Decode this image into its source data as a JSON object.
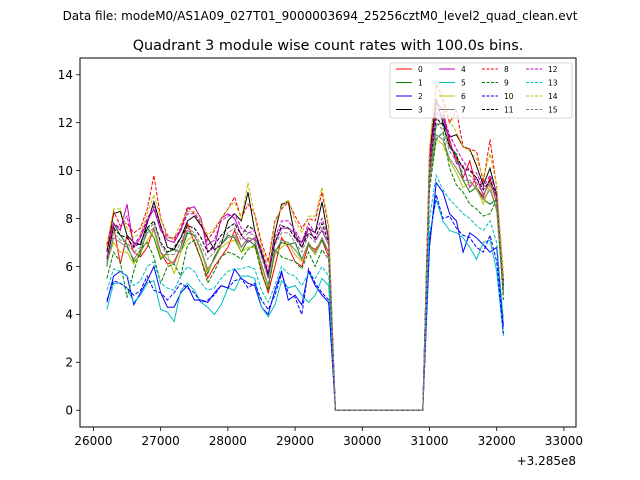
{
  "suptitle": "Data file: modeM0/AS1A09_027T01_9000003694_25256cztM0_level2_quad_clean.evt",
  "chart_data": {
    "type": "line",
    "title": "Quadrant 3 module wise count rates with 100.0s bins.",
    "xlabel": "",
    "ylabel": "",
    "offset_label": "+3.285e8",
    "xlim": [
      25800,
      33180
    ],
    "ylim": [
      -0.7,
      14.7
    ],
    "x_ticks": [
      26000,
      27000,
      28000,
      29000,
      30000,
      31000,
      32000,
      33000
    ],
    "x_tick_labels": [
      "26000",
      "27000",
      "28000",
      "29000",
      "30000",
      "31000",
      "32000",
      "33000"
    ],
    "y_ticks": [
      0,
      2,
      4,
      6,
      8,
      10,
      12,
      14
    ],
    "y_tick_labels": [
      "0",
      "2",
      "4",
      "6",
      "8",
      "10",
      "12",
      "14"
    ],
    "grid": false,
    "legend_position": "top-right",
    "x_start": 26200,
    "x_step": 100,
    "series": [
      {
        "name": "0",
        "color": "#ff0000",
        "dash": "solid",
        "values": [
          6.7,
          7.7,
          6.1,
          7.3,
          6.6,
          6.4,
          6.8,
          7.6,
          6.6,
          6.1,
          6.2,
          6.8,
          7.8,
          7.0,
          6.3,
          5.5,
          6.0,
          6.4,
          6.8,
          7.5,
          6.8,
          7.2,
          7.1,
          5.8,
          4.9,
          6.0,
          7.2,
          6.8,
          6.2,
          6.0,
          6.9,
          6.7,
          7.1,
          6.4,
          0,
          0,
          0,
          0,
          0,
          0,
          0,
          0,
          0,
          0,
          0,
          0,
          0,
          0,
          10.0,
          12.8,
          12.6,
          11.1,
          10.5,
          9.7,
          10.4,
          9.3,
          8.9,
          9.7,
          8.6,
          5.4
        ]
      },
      {
        "name": "1",
        "color": "#008000",
        "dash": "solid",
        "values": [
          6.0,
          7.8,
          7.3,
          6.9,
          6.2,
          6.5,
          7.6,
          7.2,
          6.3,
          6.6,
          6.7,
          6.6,
          7.4,
          7.3,
          6.7,
          5.7,
          6.4,
          6.9,
          7.3,
          7.2,
          6.6,
          7.1,
          6.9,
          6.0,
          5.2,
          6.6,
          7.0,
          6.9,
          7.0,
          6.3,
          6.9,
          6.5,
          7.1,
          6.6,
          0,
          0,
          0,
          0,
          0,
          0,
          0,
          0,
          0,
          0,
          0,
          0,
          0,
          0,
          9.8,
          11.9,
          12.0,
          11.0,
          10.7,
          9.6,
          9.1,
          9.3,
          8.8,
          8.6,
          8.8,
          5.0
        ]
      },
      {
        "name": "2",
        "color": "#0000ff",
        "dash": "solid",
        "values": [
          4.5,
          5.6,
          5.8,
          5.6,
          4.4,
          4.9,
          5.4,
          6.0,
          4.9,
          4.3,
          4.3,
          4.9,
          5.2,
          4.6,
          4.6,
          4.5,
          4.9,
          5.2,
          5.1,
          5.9,
          5.5,
          5.3,
          5.2,
          4.3,
          4.0,
          5.0,
          5.8,
          4.6,
          4.8,
          4.4,
          5.8,
          5.2,
          4.8,
          4.5,
          0,
          0,
          0,
          0,
          0,
          0,
          0,
          0,
          0,
          0,
          0,
          0,
          0,
          0,
          6.8,
          9.5,
          9.1,
          8.2,
          7.9,
          6.6,
          7.4,
          7.2,
          6.9,
          6.6,
          6.8,
          3.5
        ]
      },
      {
        "name": "3",
        "color": "#000000",
        "dash": "solid",
        "values": [
          6.6,
          8.2,
          8.3,
          7.3,
          7.0,
          6.9,
          7.8,
          8.7,
          7.7,
          6.8,
          6.7,
          7.2,
          7.9,
          8.1,
          7.7,
          7.2,
          6.7,
          6.9,
          7.9,
          8.2,
          7.9,
          9.1,
          7.5,
          6.5,
          5.6,
          7.4,
          8.6,
          8.7,
          7.2,
          7.0,
          7.6,
          7.4,
          8.7,
          7.1,
          0,
          0,
          0,
          0,
          0,
          0,
          0,
          0,
          0,
          0,
          0,
          0,
          0,
          0,
          10.6,
          13.0,
          12.0,
          11.4,
          11.5,
          11.0,
          10.9,
          10.2,
          9.4,
          10.1,
          9.0,
          5.2
        ]
      },
      {
        "name": "4",
        "color": "#bf00bf",
        "dash": "solid",
        "values": [
          6.9,
          7.8,
          7.5,
          8.6,
          6.8,
          7.2,
          7.9,
          8.4,
          7.5,
          7.1,
          7.0,
          7.5,
          8.4,
          8.5,
          8.0,
          6.6,
          6.8,
          8.0,
          8.2,
          8.0,
          7.3,
          7.0,
          7.2,
          6.6,
          5.5,
          7.0,
          7.6,
          7.6,
          7.4,
          6.8,
          7.6,
          7.1,
          7.5,
          6.9,
          0,
          0,
          0,
          0,
          0,
          0,
          0,
          0,
          0,
          0,
          0,
          0,
          0,
          0,
          10.5,
          12.4,
          12.2,
          11.3,
          10.3,
          10.2,
          9.3,
          9.7,
          9.0,
          9.5,
          8.9,
          4.8
        ]
      },
      {
        "name": "5",
        "color": "#00bfbf",
        "dash": "solid",
        "values": [
          4.2,
          5.3,
          5.3,
          5.1,
          4.5,
          4.8,
          5.3,
          5.4,
          4.2,
          4.1,
          3.7,
          5.0,
          5.3,
          5.0,
          4.5,
          4.3,
          4.0,
          4.4,
          5.1,
          5.0,
          5.6,
          5.6,
          5.5,
          4.3,
          3.9,
          4.4,
          5.4,
          5.1,
          5.2,
          4.8,
          4.5,
          4.8,
          5.5,
          5.2,
          0,
          0,
          0,
          0,
          0,
          0,
          0,
          0,
          0,
          0,
          0,
          0,
          0,
          0,
          7.3,
          8.8,
          7.9,
          7.5,
          7.4,
          7.2,
          6.8,
          6.3,
          7.0,
          7.1,
          5.8,
          3.1
        ]
      },
      {
        "name": "6",
        "color": "#bfbf00",
        "dash": "solid",
        "values": [
          6.2,
          7.0,
          6.6,
          6.6,
          6.1,
          6.6,
          7.1,
          7.5,
          6.4,
          6.5,
          5.7,
          6.6,
          7.1,
          7.3,
          6.6,
          5.8,
          6.3,
          6.8,
          7.0,
          7.1,
          6.6,
          6.8,
          6.8,
          6.0,
          5.1,
          6.5,
          6.8,
          7.0,
          6.5,
          6.2,
          7.0,
          6.5,
          7.2,
          6.6,
          0,
          0,
          0,
          0,
          0,
          0,
          0,
          0,
          0,
          0,
          0,
          0,
          0,
          0,
          9.5,
          11.3,
          11.1,
          10.4,
          9.9,
          9.3,
          9.5,
          9.3,
          8.6,
          9.4,
          8.3,
          4.8
        ]
      },
      {
        "name": "7",
        "color": "#808080",
        "dash": "solid",
        "values": [
          6.1,
          7.2,
          7.0,
          6.8,
          6.3,
          6.7,
          7.4,
          7.6,
          6.6,
          6.3,
          6.1,
          6.8,
          7.5,
          7.3,
          6.7,
          5.9,
          6.3,
          6.9,
          7.2,
          7.3,
          6.8,
          7.2,
          7.1,
          6.1,
          5.2,
          6.6,
          7.1,
          7.0,
          6.7,
          6.3,
          7.0,
          6.6,
          7.2,
          6.6,
          0,
          0,
          0,
          0,
          0,
          0,
          0,
          0,
          0,
          0,
          0,
          0,
          0,
          0,
          9.6,
          11.5,
          11.3,
          10.5,
          10.1,
          9.6,
          9.6,
          9.2,
          8.8,
          9.2,
          8.4,
          4.9
        ]
      },
      {
        "name": "8",
        "color": "#ff0000",
        "dash": "dashed",
        "values": [
          6.9,
          8.3,
          7.7,
          7.8,
          7.4,
          7.6,
          8.4,
          9.8,
          8.0,
          7.3,
          7.1,
          7.6,
          8.5,
          8.2,
          7.8,
          7.1,
          7.5,
          8.0,
          8.4,
          8.9,
          8.0,
          8.6,
          8.2,
          7.0,
          6.2,
          7.9,
          8.4,
          8.7,
          8.1,
          7.6,
          8.0,
          7.9,
          9.1,
          7.6,
          0,
          0,
          0,
          0,
          0,
          0,
          0,
          0,
          0,
          0,
          0,
          0,
          0,
          0,
          10.8,
          13.6,
          12.9,
          12.0,
          12.5,
          11.0,
          10.9,
          10.8,
          9.5,
          11.3,
          9.3,
          5.6
        ]
      },
      {
        "name": "9",
        "color": "#008000",
        "dash": "dashed",
        "values": [
          5.5,
          6.6,
          6.2,
          4.7,
          5.8,
          6.7,
          7.0,
          6.4,
          5.3,
          6.0,
          6.1,
          5.6,
          6.9,
          7.1,
          6.3,
          5.3,
          5.8,
          6.4,
          6.6,
          6.5,
          6.3,
          6.7,
          6.9,
          5.7,
          5.0,
          6.7,
          6.4,
          6.3,
          6.2,
          5.9,
          6.6,
          6.0,
          6.7,
          6.3,
          0,
          0,
          0,
          0,
          0,
          0,
          0,
          0,
          0,
          0,
          0,
          0,
          0,
          0,
          9.2,
          11.3,
          11.6,
          10.1,
          9.4,
          9.1,
          8.6,
          8.4,
          8.1,
          8.2,
          8.8,
          4.6
        ]
      },
      {
        "name": "10",
        "color": "#0000ff",
        "dash": "dashed",
        "values": [
          4.6,
          5.4,
          5.3,
          5.1,
          4.8,
          5.0,
          5.6,
          5.0,
          4.9,
          4.6,
          4.9,
          5.3,
          5.1,
          4.9,
          4.5,
          4.6,
          4.8,
          5.2,
          5.1,
          5.4,
          5.5,
          5.1,
          5.3,
          4.6,
          4.2,
          4.8,
          5.7,
          4.9,
          4.7,
          4.0,
          5.9,
          5.3,
          4.9,
          4.6,
          0,
          0,
          0,
          0,
          0,
          0,
          0,
          0,
          0,
          0,
          0,
          0,
          0,
          0,
          7.1,
          9.0,
          8.0,
          8.1,
          7.6,
          7.3,
          7.2,
          6.8,
          6.6,
          7.3,
          6.2,
          3.2
        ]
      },
      {
        "name": "11",
        "color": "#000000",
        "dash": "dashed",
        "values": [
          6.3,
          7.6,
          7.3,
          7.2,
          6.8,
          7.0,
          7.6,
          7.9,
          7.0,
          6.6,
          6.8,
          7.2,
          7.7,
          7.6,
          7.2,
          6.6,
          6.9,
          7.3,
          7.6,
          7.8,
          7.3,
          7.7,
          7.5,
          6.6,
          5.7,
          7.0,
          7.7,
          7.6,
          7.2,
          6.8,
          7.4,
          7.2,
          7.8,
          7.0,
          0,
          0,
          0,
          0,
          0,
          0,
          0,
          0,
          0,
          0,
          0,
          0,
          0,
          0,
          10.1,
          12.2,
          11.9,
          11.0,
          10.6,
          10.1,
          10.0,
          9.7,
          9.2,
          9.6,
          9.0,
          5.1
        ]
      },
      {
        "name": "12",
        "color": "#bf00bf",
        "dash": "dashed",
        "values": [
          6.4,
          7.8,
          7.6,
          8.1,
          6.9,
          7.3,
          8.0,
          8.5,
          7.6,
          7.2,
          7.2,
          7.5,
          8.2,
          8.2,
          7.8,
          6.9,
          7.1,
          7.9,
          8.1,
          8.2,
          7.6,
          7.4,
          7.5,
          6.7,
          5.8,
          7.2,
          7.9,
          7.9,
          7.5,
          7.0,
          7.8,
          7.4,
          8.0,
          7.2,
          0,
          0,
          0,
          0,
          0,
          0,
          0,
          0,
          0,
          0,
          0,
          0,
          0,
          0,
          10.3,
          12.6,
          12.3,
          11.5,
          10.9,
          10.4,
          10.0,
          9.9,
          9.3,
          9.8,
          9.1,
          5.0
        ]
      },
      {
        "name": "13",
        "color": "#00bfbf",
        "dash": "dashed",
        "values": [
          5.0,
          5.9,
          5.8,
          5.6,
          5.2,
          5.4,
          6.0,
          6.2,
          5.3,
          5.1,
          5.0,
          5.6,
          6.0,
          5.8,
          5.3,
          5.0,
          5.1,
          5.5,
          5.8,
          5.9,
          5.9,
          6.0,
          5.9,
          5.0,
          4.5,
          5.2,
          6.0,
          5.7,
          5.6,
          5.2,
          5.7,
          5.5,
          6.0,
          5.6,
          0,
          0,
          0,
          0,
          0,
          0,
          0,
          0,
          0,
          0,
          0,
          0,
          0,
          0,
          8.0,
          9.8,
          9.2,
          8.8,
          8.5,
          8.2,
          8.0,
          7.7,
          7.5,
          7.9,
          7.0,
          3.8
        ]
      },
      {
        "name": "14",
        "color": "#bfbf00",
        "dash": "dashed",
        "values": [
          6.8,
          8.4,
          8.4,
          7.6,
          7.2,
          7.4,
          8.2,
          9.0,
          8.0,
          7.2,
          7.2,
          7.8,
          8.3,
          8.3,
          7.9,
          7.3,
          7.6,
          8.0,
          8.4,
          8.7,
          8.0,
          9.5,
          8.1,
          6.8,
          6.0,
          7.8,
          8.5,
          8.8,
          7.9,
          7.4,
          8.1,
          8.1,
          9.3,
          7.7,
          0,
          0,
          0,
          0,
          0,
          0,
          0,
          0,
          0,
          0,
          0,
          0,
          0,
          0,
          10.9,
          13.8,
          13.1,
          12.1,
          11.6,
          11.0,
          10.8,
          10.5,
          9.7,
          10.7,
          9.4,
          5.5
        ]
      },
      {
        "name": "15",
        "color": "#808080",
        "dash": "dashed",
        "values": [
          6.2,
          7.4,
          7.1,
          7.0,
          6.6,
          6.8,
          7.5,
          7.8,
          6.9,
          6.5,
          6.5,
          7.0,
          7.6,
          7.4,
          6.9,
          6.3,
          6.6,
          7.1,
          7.4,
          7.6,
          7.1,
          7.4,
          7.3,
          6.4,
          5.5,
          6.9,
          7.4,
          7.4,
          7.0,
          6.6,
          7.3,
          7.0,
          7.6,
          6.9,
          0,
          0,
          0,
          0,
          0,
          0,
          0,
          0,
          0,
          0,
          0,
          0,
          0,
          0,
          9.9,
          12.0,
          11.7,
          10.8,
          10.4,
          9.9,
          9.8,
          9.5,
          9.0,
          9.5,
          8.7,
          5.0
        ]
      }
    ]
  }
}
